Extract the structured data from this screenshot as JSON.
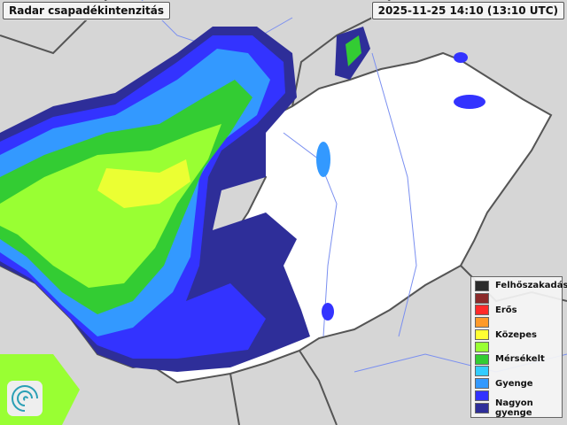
{
  "header": {
    "title": "Radar csapadékintenzitás",
    "timestamp": "2025-11-25 14:10 (13:10 UTC)"
  },
  "legend": {
    "items": [
      {
        "label": "Felhőszakadás",
        "color": "#2b2b2b"
      },
      {
        "label": "",
        "color": "#8b2a2a"
      },
      {
        "label": "Erős",
        "color": "#ff2a2a"
      },
      {
        "label": "",
        "color": "#ff9a2a"
      },
      {
        "label": "Közepes",
        "color": "#ffff33"
      },
      {
        "label": "",
        "color": "#99ff33"
      },
      {
        "label": "Mérsékelt",
        "color": "#33cc33"
      },
      {
        "label": "",
        "color": "#33ccff"
      },
      {
        "label": "Gyenge",
        "color": "#3399ff"
      },
      {
        "label": "",
        "color": "#3333ff"
      },
      {
        "label": "Nagyon gyenge",
        "color": "#2e2e99"
      }
    ]
  },
  "logo": {
    "icon": "spiral-logo-icon"
  },
  "colors": {
    "background": "#d9d9d9",
    "country": "#ffffff",
    "border": "#555555",
    "rivers": "#7a8ff0"
  }
}
